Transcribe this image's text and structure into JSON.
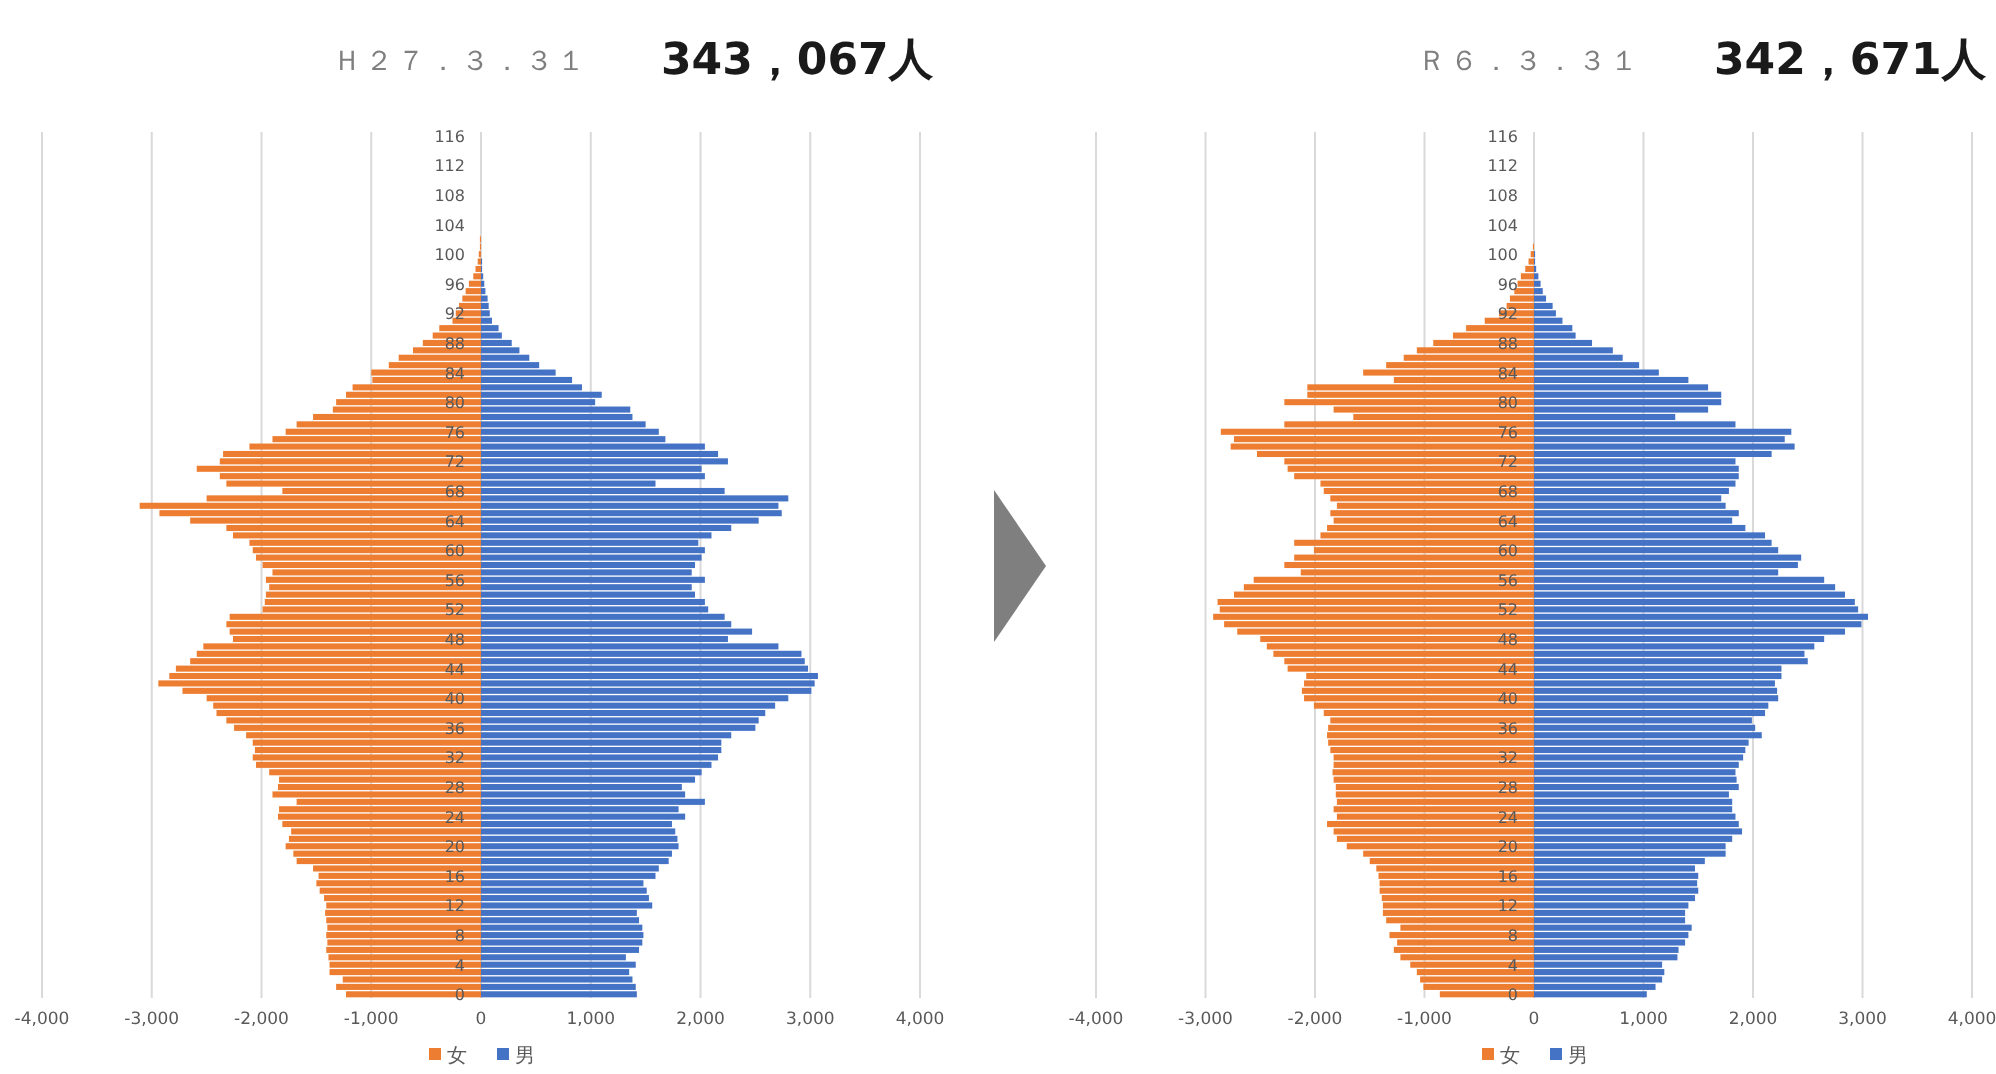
{
  "chart_data": [
    {
      "type": "bar",
      "orientation": "horizontal",
      "stacked": true,
      "title": "Ｈ２７．３．３１",
      "subtitle": "343，067人",
      "categories": [
        "116",
        null,
        null,
        null,
        "112",
        null,
        null,
        null,
        "108",
        null,
        null,
        null,
        "104",
        null,
        null,
        null,
        "100",
        null,
        null,
        null,
        "96",
        null,
        null,
        null,
        "92",
        null,
        null,
        null,
        "88",
        null,
        null,
        null,
        "84",
        null,
        null,
        null,
        "80",
        null,
        null,
        null,
        "76",
        null,
        null,
        null,
        "72",
        null,
        null,
        null,
        "68",
        null,
        null,
        null,
        "64",
        null,
        null,
        null,
        "60",
        null,
        null,
        null,
        "56",
        null,
        null,
        null,
        "52",
        null,
        null,
        null,
        "48",
        null,
        null,
        null,
        "44",
        null,
        null,
        null,
        "40",
        null,
        null,
        null,
        "36",
        null,
        null,
        null,
        "32",
        null,
        null,
        null,
        "28",
        null,
        null,
        null,
        "24",
        null,
        null,
        null,
        "20",
        null,
        null,
        null,
        "16",
        null,
        null,
        null,
        "12",
        null,
        null,
        null,
        "8",
        null,
        null,
        null,
        "4",
        null,
        null,
        null,
        "0"
      ],
      "series": [
        {
          "name": "女",
          "color": "#ed7d31",
          "values": [
            0,
            0,
            0,
            0,
            0,
            0,
            0,
            0,
            0,
            0,
            0,
            0,
            0,
            0,
            -10,
            -10,
            -20,
            -30,
            -50,
            -70,
            -110,
            -140,
            -170,
            -200,
            -230,
            -260,
            -380,
            -440,
            -530,
            -620,
            -750,
            -840,
            -1000,
            -990,
            -1170,
            -1230,
            -1320,
            -1350,
            -1530,
            -1680,
            -1780,
            -1900,
            -2110,
            -2350,
            -2380,
            -2590,
            -2380,
            -2320,
            -1810,
            -2500,
            -3110,
            -2930,
            -2650,
            -2320,
            -2260,
            -2110,
            -2080,
            -2050,
            -1990,
            -1900,
            -1960,
            -1930,
            -1960,
            -1970,
            -1990,
            -2290,
            -2320,
            -2290,
            -2260,
            -2530,
            -2590,
            -2650,
            -2780,
            -2840,
            -2940,
            -2720,
            -2500,
            -2440,
            -2410,
            -2320,
            -2250,
            -2140,
            -2080,
            -2060,
            -2080,
            -2050,
            -1930,
            -1840,
            -1850,
            -1900,
            -1680,
            -1840,
            -1850,
            -1810,
            -1730,
            -1750,
            -1780,
            -1710,
            -1680,
            -1530,
            -1480,
            -1500,
            -1470,
            -1430,
            -1410,
            -1420,
            -1410,
            -1400,
            -1410,
            -1400,
            -1410,
            -1390,
            -1380,
            -1380,
            -1260,
            -1320,
            -1230
          ]
        },
        {
          "name": "男",
          "color": "#4472c4",
          "values": [
            0,
            0,
            0,
            0,
            0,
            0,
            0,
            0,
            0,
            0,
            0,
            0,
            0,
            0,
            0,
            0,
            0,
            10,
            10,
            20,
            30,
            40,
            60,
            70,
            80,
            100,
            160,
            190,
            280,
            350,
            440,
            530,
            680,
            830,
            920,
            1100,
            1040,
            1360,
            1380,
            1500,
            1620,
            1680,
            2040,
            2160,
            2250,
            2010,
            2040,
            1590,
            2220,
            2800,
            2710,
            2740,
            2530,
            2280,
            2100,
            1980,
            2040,
            2010,
            1950,
            1920,
            2040,
            1920,
            1950,
            2040,
            2070,
            2220,
            2280,
            2470,
            2250,
            2710,
            2920,
            2950,
            2980,
            3070,
            3040,
            3010,
            2800,
            2680,
            2590,
            2530,
            2500,
            2280,
            2190,
            2190,
            2160,
            2100,
            2010,
            1950,
            1830,
            1860,
            2040,
            1800,
            1860,
            1740,
            1770,
            1790,
            1800,
            1740,
            1710,
            1620,
            1590,
            1480,
            1510,
            1530,
            1560,
            1420,
            1440,
            1470,
            1480,
            1470,
            1440,
            1320,
            1410,
            1350,
            1380,
            1410,
            1420
          ]
        }
      ],
      "xlim": [
        -4000,
        4000
      ],
      "xticks": [
        {
          "value": -4000,
          "label": "-4,000"
        },
        {
          "value": -3000,
          "label": "-3,000"
        },
        {
          "value": -2000,
          "label": "-2,000"
        },
        {
          "value": -1000,
          "label": "-1,000"
        },
        0,
        {
          "value": 1000,
          "label": "1,000"
        },
        {
          "value": 2000,
          "label": "2,000"
        },
        {
          "value": 3000,
          "label": "3,000"
        },
        {
          "value": 4000,
          "label": "4,000"
        }
      ],
      "grid": "x",
      "legend": "bottom"
    },
    {
      "type": "bar",
      "orientation": "horizontal",
      "stacked": true,
      "title": "Ｒ６．３．３１",
      "subtitle": "342，671人",
      "categories": [
        "116",
        null,
        null,
        null,
        "112",
        null,
        null,
        null,
        "108",
        null,
        null,
        null,
        "104",
        null,
        null,
        null,
        "100",
        null,
        null,
        null,
        "96",
        null,
        null,
        null,
        "92",
        null,
        null,
        null,
        "88",
        null,
        null,
        null,
        "84",
        null,
        null,
        null,
        "80",
        null,
        null,
        null,
        "76",
        null,
        null,
        null,
        "72",
        null,
        null,
        null,
        "68",
        null,
        null,
        null,
        "64",
        null,
        null,
        null,
        "60",
        null,
        null,
        null,
        "56",
        null,
        null,
        null,
        "52",
        null,
        null,
        null,
        "48",
        null,
        null,
        null,
        "44",
        null,
        null,
        null,
        "40",
        null,
        null,
        null,
        "36",
        null,
        null,
        null,
        "32",
        null,
        null,
        null,
        "28",
        null,
        null,
        null,
        "24",
        null,
        null,
        null,
        "20",
        null,
        null,
        null,
        "16",
        null,
        null,
        null,
        "12",
        null,
        null,
        null,
        "8",
        null,
        null,
        null,
        "4",
        null,
        null,
        null,
        "0"
      ],
      "series": [
        {
          "name": "女",
          "color": "#ed7d31",
          "values": [
            0,
            0,
            0,
            0,
            0,
            0,
            0,
            0,
            0,
            0,
            0,
            0,
            0,
            0,
            0,
            -10,
            -30,
            -50,
            -80,
            -120,
            -150,
            -180,
            -220,
            -250,
            -320,
            -450,
            -620,
            -740,
            -920,
            -1070,
            -1190,
            -1350,
            -1560,
            -1280,
            -2070,
            -2070,
            -2280,
            -1830,
            -1650,
            -2280,
            -2860,
            -2740,
            -2770,
            -2530,
            -2280,
            -2250,
            -2190,
            -1950,
            -1920,
            -1860,
            -1800,
            -1860,
            -1830,
            -1890,
            -1950,
            -2190,
            -2010,
            -2190,
            -2280,
            -2130,
            -2560,
            -2650,
            -2740,
            -2890,
            -2870,
            -2930,
            -2830,
            -2710,
            -2500,
            -2440,
            -2380,
            -2280,
            -2250,
            -2080,
            -2100,
            -2120,
            -2100,
            -2010,
            -1920,
            -1860,
            -1880,
            -1890,
            -1880,
            -1860,
            -1830,
            -1830,
            -1840,
            -1830,
            -1810,
            -1810,
            -1800,
            -1830,
            -1800,
            -1890,
            -1830,
            -1800,
            -1710,
            -1560,
            -1500,
            -1440,
            -1420,
            -1410,
            -1410,
            -1390,
            -1380,
            -1380,
            -1350,
            -1220,
            -1320,
            -1250,
            -1280,
            -1220,
            -1130,
            -1070,
            -1040,
            -1010,
            -860
          ]
        },
        {
          "name": "男",
          "color": "#4472c4",
          "values": [
            0,
            0,
            0,
            0,
            0,
            0,
            0,
            0,
            0,
            0,
            0,
            0,
            0,
            0,
            0,
            0,
            10,
            10,
            20,
            40,
            60,
            80,
            110,
            170,
            200,
            260,
            350,
            380,
            530,
            720,
            810,
            960,
            1140,
            1410,
            1590,
            1710,
            1710,
            1590,
            1290,
            1840,
            2350,
            2290,
            2380,
            2170,
            1840,
            1870,
            1870,
            1840,
            1780,
            1710,
            1750,
            1870,
            1810,
            1930,
            2110,
            2170,
            2230,
            2440,
            2410,
            2230,
            2650,
            2750,
            2840,
            2930,
            2960,
            3050,
            2990,
            2840,
            2650,
            2560,
            2470,
            2500,
            2260,
            2260,
            2200,
            2220,
            2230,
            2140,
            2110,
            1990,
            2020,
            2080,
            1960,
            1930,
            1910,
            1870,
            1840,
            1850,
            1870,
            1780,
            1810,
            1810,
            1840,
            1870,
            1900,
            1810,
            1750,
            1750,
            1560,
            1470,
            1500,
            1490,
            1500,
            1470,
            1410,
            1380,
            1380,
            1440,
            1410,
            1380,
            1320,
            1310,
            1170,
            1190,
            1170,
            1110,
            1030
          ]
        }
      ],
      "xlim": [
        -4000,
        4000
      ],
      "xticks": [
        {
          "value": -4000,
          "label": "-4,000"
        },
        {
          "value": -3000,
          "label": "-3,000"
        },
        {
          "value": -2000,
          "label": "-2,000"
        },
        {
          "value": -1000,
          "label": "-1,000"
        },
        0,
        {
          "value": 1000,
          "label": "1,000"
        },
        {
          "value": 2000,
          "label": "2,000"
        },
        {
          "value": 3000,
          "label": "3,000"
        },
        {
          "value": 4000,
          "label": "4,000"
        }
      ],
      "grid": "x",
      "legend": "bottom"
    }
  ]
}
